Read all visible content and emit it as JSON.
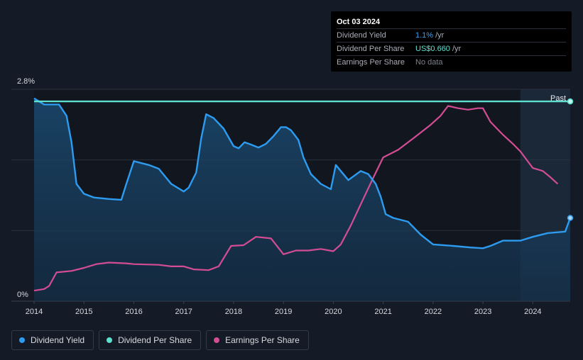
{
  "tooltip": {
    "date": "Oct 03 2024",
    "rows": [
      {
        "label": "Dividend Yield",
        "value": "1.1%",
        "unit": "/yr"
      },
      {
        "label": "Dividend Per Share",
        "value": "US$0.660",
        "unit": "/yr"
      },
      {
        "label": "Earnings Per Share",
        "value": "No data",
        "unit": ""
      }
    ]
  },
  "legend": [
    {
      "label": "Dividend Yield",
      "color": "#2d9cf0"
    },
    {
      "label": "Dividend Per Share",
      "color": "#5fe0cf"
    },
    {
      "label": "Earnings Per Share",
      "color": "#d44d94"
    }
  ],
  "chart_data": {
    "type": "line",
    "y_max_label": "2.8%",
    "y_min_label": "0%",
    "past_label": "Past",
    "xlim": [
      2014,
      2024.75
    ],
    "ylim": [
      0,
      2.8
    ],
    "x_ticks": [
      "2014",
      "2015",
      "2016",
      "2017",
      "2018",
      "2019",
      "2020",
      "2021",
      "2022",
      "2023",
      "2024"
    ],
    "series": [
      {
        "name": "Dividend Yield",
        "color": "#2d9cf0",
        "points": [
          [
            2014.0,
            2.68
          ],
          [
            2014.2,
            2.6
          ],
          [
            2014.5,
            2.6
          ],
          [
            2014.65,
            2.45
          ],
          [
            2014.75,
            2.1
          ],
          [
            2014.85,
            1.55
          ],
          [
            2015.0,
            1.42
          ],
          [
            2015.2,
            1.37
          ],
          [
            2015.5,
            1.35
          ],
          [
            2015.75,
            1.34
          ],
          [
            2015.85,
            1.55
          ],
          [
            2016.0,
            1.85
          ],
          [
            2016.3,
            1.8
          ],
          [
            2016.5,
            1.75
          ],
          [
            2016.75,
            1.55
          ],
          [
            2017.0,
            1.45
          ],
          [
            2017.1,
            1.5
          ],
          [
            2017.25,
            1.7
          ],
          [
            2017.35,
            2.15
          ],
          [
            2017.45,
            2.47
          ],
          [
            2017.6,
            2.42
          ],
          [
            2017.8,
            2.28
          ],
          [
            2018.0,
            2.05
          ],
          [
            2018.1,
            2.02
          ],
          [
            2018.22,
            2.1
          ],
          [
            2018.35,
            2.07
          ],
          [
            2018.5,
            2.03
          ],
          [
            2018.65,
            2.08
          ],
          [
            2018.8,
            2.18
          ],
          [
            2018.95,
            2.3
          ],
          [
            2019.05,
            2.3
          ],
          [
            2019.15,
            2.26
          ],
          [
            2019.3,
            2.13
          ],
          [
            2019.4,
            1.9
          ],
          [
            2019.55,
            1.68
          ],
          [
            2019.75,
            1.55
          ],
          [
            2019.95,
            1.48
          ],
          [
            2020.05,
            1.8
          ],
          [
            2020.15,
            1.72
          ],
          [
            2020.3,
            1.6
          ],
          [
            2020.55,
            1.72
          ],
          [
            2020.7,
            1.68
          ],
          [
            2020.85,
            1.55
          ],
          [
            2020.95,
            1.38
          ],
          [
            2021.05,
            1.15
          ],
          [
            2021.2,
            1.1
          ],
          [
            2021.5,
            1.05
          ],
          [
            2021.75,
            0.88
          ],
          [
            2022.0,
            0.75
          ],
          [
            2022.4,
            0.73
          ],
          [
            2022.75,
            0.71
          ],
          [
            2023.0,
            0.7
          ],
          [
            2023.15,
            0.73
          ],
          [
            2023.4,
            0.8
          ],
          [
            2023.75,
            0.8
          ],
          [
            2024.0,
            0.85
          ],
          [
            2024.3,
            0.9
          ],
          [
            2024.65,
            0.92
          ],
          [
            2024.75,
            1.1
          ]
        ]
      },
      {
        "name": "Dividend Per Share",
        "color": "#5fe0cf",
        "points": [
          [
            2014.0,
            2.64
          ],
          [
            2014.5,
            2.64
          ],
          [
            2015.0,
            2.64
          ],
          [
            2016.0,
            2.64
          ],
          [
            2017.0,
            2.64
          ],
          [
            2018.0,
            2.64
          ],
          [
            2019.0,
            2.64
          ],
          [
            2020.0,
            2.64
          ],
          [
            2021.0,
            2.64
          ],
          [
            2022.0,
            2.64
          ],
          [
            2023.0,
            2.64
          ],
          [
            2024.0,
            2.64
          ],
          [
            2024.75,
            2.64
          ]
        ]
      },
      {
        "name": "Earnings Per Share",
        "color": "#d44d94",
        "points": [
          [
            2014.0,
            0.14
          ],
          [
            2014.2,
            0.16
          ],
          [
            2014.3,
            0.2
          ],
          [
            2014.45,
            0.38
          ],
          [
            2014.75,
            0.4
          ],
          [
            2015.0,
            0.44
          ],
          [
            2015.25,
            0.49
          ],
          [
            2015.5,
            0.51
          ],
          [
            2015.85,
            0.5
          ],
          [
            2016.0,
            0.49
          ],
          [
            2016.5,
            0.48
          ],
          [
            2016.75,
            0.46
          ],
          [
            2017.0,
            0.46
          ],
          [
            2017.2,
            0.42
          ],
          [
            2017.5,
            0.41
          ],
          [
            2017.7,
            0.46
          ],
          [
            2017.95,
            0.73
          ],
          [
            2018.2,
            0.74
          ],
          [
            2018.45,
            0.85
          ],
          [
            2018.75,
            0.83
          ],
          [
            2019.0,
            0.62
          ],
          [
            2019.25,
            0.67
          ],
          [
            2019.5,
            0.67
          ],
          [
            2019.75,
            0.69
          ],
          [
            2020.0,
            0.66
          ],
          [
            2020.15,
            0.75
          ],
          [
            2020.35,
            1.0
          ],
          [
            2020.6,
            1.35
          ],
          [
            2020.8,
            1.63
          ],
          [
            2021.0,
            1.9
          ],
          [
            2021.3,
            2.0
          ],
          [
            2021.6,
            2.15
          ],
          [
            2021.95,
            2.33
          ],
          [
            2022.15,
            2.45
          ],
          [
            2022.3,
            2.58
          ],
          [
            2022.5,
            2.55
          ],
          [
            2022.7,
            2.53
          ],
          [
            2022.9,
            2.55
          ],
          [
            2023.0,
            2.55
          ],
          [
            2023.15,
            2.37
          ],
          [
            2023.4,
            2.2
          ],
          [
            2023.6,
            2.08
          ],
          [
            2023.75,
            1.98
          ],
          [
            2024.0,
            1.76
          ],
          [
            2024.2,
            1.72
          ],
          [
            2024.35,
            1.64
          ],
          [
            2024.5,
            1.55
          ]
        ]
      }
    ]
  }
}
